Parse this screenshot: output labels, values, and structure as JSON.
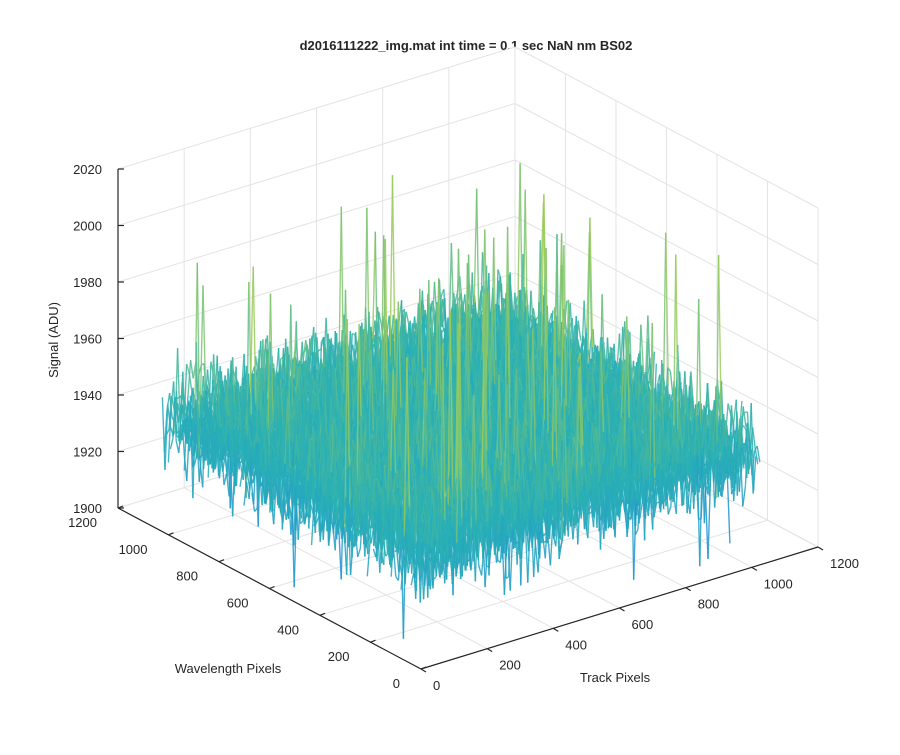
{
  "chart_data": {
    "type": "surface",
    "title": "d2016111222_img.mat int time = 0.1 sec  NaN nm BS02",
    "xlabel": "Track Pixels",
    "ylabel": "Wavelength Pixels",
    "zlabel": "Signal (ADU)",
    "xlim": [
      0,
      1200
    ],
    "ylim": [
      0,
      1200
    ],
    "zlim": [
      1900,
      2020
    ],
    "x_ticks": [
      0,
      200,
      400,
      600,
      800,
      1000,
      1200
    ],
    "y_ticks": [
      0,
      200,
      400,
      600,
      800,
      1000,
      1200
    ],
    "z_ticks": [
      1900,
      1920,
      1940,
      1960,
      1980,
      2000,
      2020
    ],
    "x_tick_labels": [
      "0",
      "200",
      "400",
      "600",
      "800",
      "1000",
      "1200"
    ],
    "y_tick_labels": [
      "0",
      "200",
      "400",
      "600",
      "800",
      "1000",
      "1200"
    ],
    "z_tick_labels": [
      "1900",
      "1920",
      "1940",
      "1960",
      "1980",
      "2000",
      "2020"
    ],
    "data_extent": {
      "x": [
        0,
        1024
      ],
      "y": [
        0,
        1024
      ]
    },
    "baseline_signal": 1940,
    "noise_range": [
      1910,
      1975
    ],
    "spike_max": 2013,
    "grid": true,
    "colormap": "parula",
    "colors": {
      "low": "#1f8fd6",
      "mid": "#29b0b5",
      "high": "#9acb5d"
    }
  }
}
